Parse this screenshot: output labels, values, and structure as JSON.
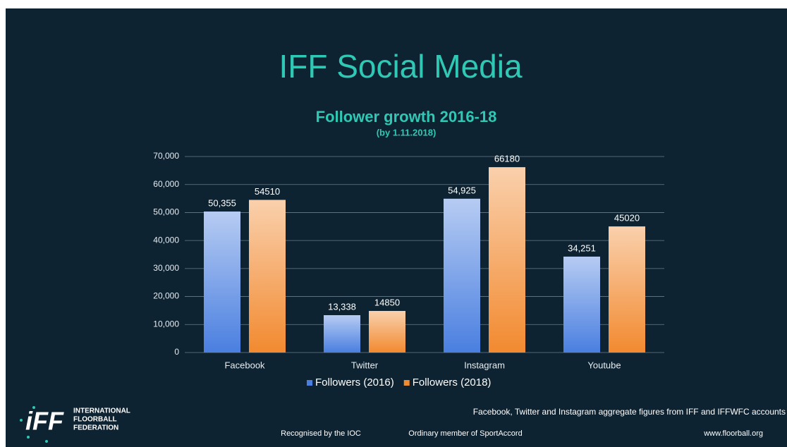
{
  "chart_data": {
    "type": "bar",
    "title": "IFF Social Media",
    "subtitle": "Follower growth 2016-18",
    "subtitle_note": "(by 1.11.2018)",
    "categories": [
      "Facebook",
      "Twitter",
      "Instagram",
      "Youtube"
    ],
    "series": [
      {
        "name": "Followers (2016)",
        "color": "#4a7fe0",
        "values": [
          50355,
          13338,
          54925,
          34251
        ],
        "value_labels": [
          "50,355",
          "13,338",
          "54,925",
          "34,251"
        ]
      },
      {
        "name": "Followers (2018)",
        "color": "#f28a30",
        "values": [
          54510,
          14850,
          66180,
          45020
        ]
      }
    ],
    "ylim": [
      0,
      70000
    ],
    "yticks": [
      0,
      {
        "value": 10000,
        "label": "10,000"
      },
      {
        "value": 20000,
        "label": "20,000"
      },
      {
        "value": 30000,
        "label": "30,000"
      },
      {
        "value": 40000,
        "label": "40,000"
      },
      {
        "value": 50000,
        "label": "50,000"
      },
      {
        "value": 60000,
        "label": "60,000"
      },
      {
        "value": 70000,
        "label": "70,000"
      }
    ],
    "grid": true,
    "legend": "bottom"
  },
  "footer": {
    "logo": "iFF",
    "org_lines": [
      "INTERNATIONAL",
      "FLOORBALL",
      "FEDERATION"
    ],
    "note": "Facebook, Twitter and Instagram aggregate figures from IFF and IFFWFC accounts",
    "recognised": "Recognised by the IOC",
    "member": "Ordinary member of SportAccord",
    "website": "www.floorball.org"
  }
}
